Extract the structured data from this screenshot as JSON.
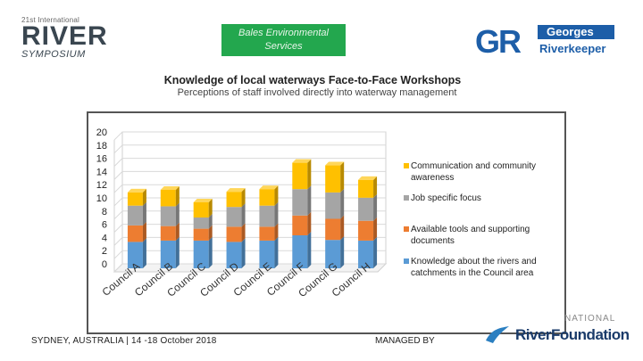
{
  "header": {
    "river_logo_small": "21st International",
    "river_logo_big": "RIVER",
    "river_logo_sub": "SYMPOSIUM",
    "bales_line1": "Bales Environmental",
    "bales_line2": "Services",
    "gr_letters": "GR",
    "gr_line1": "Georges",
    "gr_line2": "Riverkeeper"
  },
  "chart_data": {
    "type": "bar",
    "stacked": true,
    "title": "Knowledge of local waterways Face-to-Face Workshops",
    "subtitle": "Perceptions of staff involved directly into waterway management",
    "categories": [
      "Council A",
      "Council B",
      "Council C",
      "Council D",
      "Council E",
      "Council F",
      "Council G",
      "Council H"
    ],
    "series": [
      {
        "name": "Knowledge about the rivers and catchments in the Council area",
        "color": "#5b9bd5",
        "values": [
          4,
          4.2,
          4.2,
          4,
          4.2,
          5,
          4.3,
          4.2
        ]
      },
      {
        "name": "Available tools and supporting documents",
        "color": "#ed7d31",
        "values": [
          2.5,
          2.2,
          1.8,
          2.3,
          2.1,
          3,
          3.2,
          3
        ]
      },
      {
        "name": "Job specific focus",
        "color": "#a5a5a5",
        "values": [
          3,
          3,
          1.7,
          3,
          3.2,
          4,
          4,
          3.5
        ]
      },
      {
        "name": "Communication and community awareness",
        "color": "#ffc000",
        "values": [
          2,
          2.5,
          2.3,
          2.3,
          2.5,
          4,
          4.1,
          2.7
        ]
      }
    ],
    "ylim": [
      0,
      20
    ],
    "yticks": [
      "0",
      "2",
      "4",
      "6",
      "8",
      "10",
      "12",
      "14",
      "16",
      "18",
      "20"
    ],
    "legend_position": "right"
  },
  "footer": {
    "left": "SYDNEY, AUSTRALIA | 14 -18 October 2018",
    "right": "MANAGED BY",
    "rf_national": "NATIONAL",
    "rf_name": "RiverFoundation"
  }
}
